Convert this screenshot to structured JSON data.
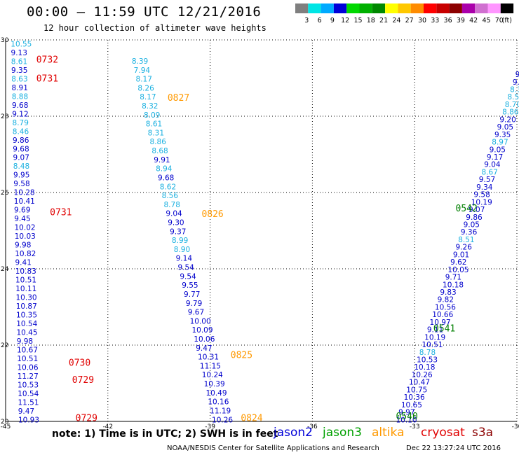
{
  "header": {
    "title": "00:00 – 11:59 UTC 12/21/2016",
    "subtitle": "12 hour collection of altimeter wave heights"
  },
  "colorbar": {
    "colors": [
      "#7f7f7f",
      "#00e5e5",
      "#00aaff",
      "#0000d8",
      "#00d800",
      "#00b000",
      "#008800",
      "#ffff00",
      "#ffc800",
      "#ff8c00",
      "#ff0000",
      "#c80000",
      "#8c0000",
      "#aa00aa",
      "#d070d0",
      "#ff96ff",
      "#000000"
    ],
    "labels": [
      "3",
      "6",
      "9",
      "12",
      "15",
      "18",
      "21",
      "24",
      "27",
      "30",
      "33",
      "36",
      "39",
      "42",
      "45",
      "70",
      "(ft)"
    ]
  },
  "notes": {
    "text": "note: 1) Time is in UTC; 2) SWH is in feet",
    "satellites": [
      {
        "name": "jason2",
        "color": "#0000d8"
      },
      {
        "name": "jason3",
        "color": "#00a000"
      },
      {
        "name": "altika",
        "color": "#ff9900"
      },
      {
        "name": "cryosat",
        "color": "#e00000"
      },
      {
        "name": "s3a",
        "color": "#8c0000"
      }
    ]
  },
  "footer": {
    "left": "NOAA/NESDIS Center for Satellite Applications and Research",
    "right": "Dec 22 13:27:24 UTC 2016"
  },
  "chart_data": {
    "type": "scatter",
    "xlim": [
      -45,
      -30
    ],
    "ylim": [
      20,
      30
    ],
    "x_ticks": [
      -45,
      -42,
      -39,
      -36,
      -33,
      -30
    ],
    "x_tick_labels": [
      "-45",
      "-42",
      "-39",
      "-36",
      "-33",
      "-30"
    ],
    "y_ticks": [
      20,
      22,
      24,
      26,
      28,
      30
    ],
    "y_tick_labels": [
      "20",
      "22",
      "24",
      "26",
      "28",
      "30"
    ],
    "grid": true,
    "palette": {
      "c": "#1ab0e0",
      "b": "#0000cc",
      "s": "#0060c8"
    },
    "tracks": [
      {
        "name": "A",
        "x": [
          -44.85,
          -44.63
        ],
        "y": [
          29.9,
          20.05
        ],
        "values": [
          [
            "10.55",
            "c"
          ],
          [
            "9.13",
            "b"
          ],
          [
            "8.61",
            "c"
          ],
          [
            "9.35",
            "b"
          ],
          [
            "8.63",
            "c"
          ],
          [
            "8.91",
            "b"
          ],
          [
            "8.88",
            "c"
          ],
          [
            "9.68",
            "b"
          ],
          [
            "9.12",
            "b"
          ],
          [
            "8.79",
            "c"
          ],
          [
            "8.46",
            "c"
          ],
          [
            "9.86",
            "b"
          ],
          [
            "9.68",
            "b"
          ],
          [
            "9.07",
            "b"
          ],
          [
            "8.48",
            "c"
          ],
          [
            "9.95",
            "b"
          ],
          [
            "9.58",
            "b"
          ],
          [
            "10.28",
            "b"
          ],
          [
            "10.41",
            "b"
          ],
          [
            "9.69",
            "b"
          ],
          [
            "9.45",
            "b"
          ],
          [
            "10.02",
            "b"
          ],
          [
            "10.03",
            "b"
          ],
          [
            "9.98",
            "b"
          ],
          [
            "10.82",
            "b"
          ],
          [
            "9.41",
            "b"
          ],
          [
            "10.83",
            "b"
          ],
          [
            "10.51",
            "b"
          ],
          [
            "10.11",
            "b"
          ],
          [
            "10.30",
            "b"
          ],
          [
            "10.87",
            "b"
          ],
          [
            "10.35",
            "b"
          ],
          [
            "10.54",
            "b"
          ],
          [
            "10.45",
            "b"
          ],
          [
            "9.98",
            "b"
          ],
          [
            "10.67",
            "b"
          ],
          [
            "10.51",
            "b"
          ],
          [
            "10.06",
            "b"
          ],
          [
            "11.27",
            "b"
          ],
          [
            "10.53",
            "b"
          ],
          [
            "10.54",
            "b"
          ],
          [
            "11.51",
            "b"
          ],
          [
            "9.47",
            "b"
          ],
          [
            "10.93",
            "b"
          ]
        ]
      },
      {
        "name": "B",
        "x": [
          -41.3,
          -38.95
        ],
        "y": [
          29.45,
          20.05
        ],
        "values": [
          [
            "8.39",
            "c"
          ],
          [
            "7.94",
            "c"
          ],
          [
            "8.17",
            "c"
          ],
          [
            "8.26",
            "c"
          ],
          [
            "8.17",
            "c"
          ],
          [
            "8.32",
            "c"
          ],
          [
            "8.09",
            "c"
          ],
          [
            "8.61",
            "c"
          ],
          [
            "8.31",
            "c"
          ],
          [
            "8.86",
            "c"
          ],
          [
            "8.68",
            "c"
          ],
          [
            "9.91",
            "b"
          ],
          [
            "8.94",
            "c"
          ],
          [
            "9.68",
            "b"
          ],
          [
            "8.62",
            "c"
          ],
          [
            "8.56",
            "c"
          ],
          [
            "8.78",
            "c"
          ],
          [
            "9.04",
            "b"
          ],
          [
            "9.30",
            "b"
          ],
          [
            "9.37",
            "b"
          ],
          [
            "8.99",
            "c"
          ],
          [
            "8.90",
            "c"
          ],
          [
            "9.14",
            "b"
          ],
          [
            "9.54",
            "b"
          ],
          [
            "9.54",
            "b"
          ],
          [
            "9.55",
            "b"
          ],
          [
            "9.77",
            "b"
          ],
          [
            "9.79",
            "b"
          ],
          [
            "9.67",
            "b"
          ],
          [
            "10.00",
            "b"
          ],
          [
            "10.09",
            "b"
          ],
          [
            "10.06",
            "b"
          ],
          [
            "9.47",
            "b"
          ],
          [
            "10.31",
            "b"
          ],
          [
            "11.15",
            "b"
          ],
          [
            "10.24",
            "b"
          ],
          [
            "10.39",
            "b"
          ],
          [
            "10.49",
            "b"
          ],
          [
            "10.16",
            "b"
          ],
          [
            "11.19",
            "b"
          ],
          [
            "10.26",
            "b"
          ]
        ]
      },
      {
        "name": "C",
        "x": [
          -30.05,
          -33.55
        ],
        "y": [
          29.1,
          20.05
        ],
        "values": [
          [
            "9",
            "b"
          ],
          [
            "9.",
            "b"
          ],
          [
            "8.3",
            "c"
          ],
          [
            "8.51",
            "c"
          ],
          [
            "8.70",
            "c"
          ],
          [
            "8.86",
            "c"
          ],
          [
            "9.20",
            "b"
          ],
          [
            "9.05",
            "b"
          ],
          [
            "9.35",
            "b"
          ],
          [
            "8.97",
            "c"
          ],
          [
            "9.05",
            "b"
          ],
          [
            "9.17",
            "b"
          ],
          [
            "9.04",
            "b"
          ],
          [
            "8.67",
            "c"
          ],
          [
            "9.57",
            "b"
          ],
          [
            "9.34",
            "b"
          ],
          [
            "9.58",
            "b"
          ],
          [
            "10.19",
            "b"
          ],
          [
            "9.07",
            "b"
          ],
          [
            "9.86",
            "b"
          ],
          [
            "9.05",
            "b"
          ],
          [
            "9.36",
            "b"
          ],
          [
            "8.51",
            "c"
          ],
          [
            "9.26",
            "b"
          ],
          [
            "9.01",
            "b"
          ],
          [
            "9.62",
            "b"
          ],
          [
            "10.05",
            "b"
          ],
          [
            "9.71",
            "b"
          ],
          [
            "10.18",
            "b"
          ],
          [
            "9.83",
            "b"
          ],
          [
            "9.82",
            "b"
          ],
          [
            "10.56",
            "b"
          ],
          [
            "10.66",
            "b"
          ],
          [
            "10.97",
            "b"
          ],
          [
            "9.11",
            "b"
          ],
          [
            "10.19",
            "b"
          ],
          [
            "10.51",
            "b"
          ],
          [
            "8.78",
            "c"
          ],
          [
            "10.53",
            "b"
          ],
          [
            "10.18",
            "b"
          ],
          [
            "10.26",
            "b"
          ],
          [
            "10.47",
            "b"
          ],
          [
            "10.75",
            "b"
          ],
          [
            "10.36",
            "b"
          ],
          [
            "10.65",
            "b"
          ],
          [
            "9.97",
            "b"
          ],
          [
            "10.10",
            "b"
          ]
        ]
      }
    ],
    "time_labels": [
      {
        "text": "0732",
        "color": "#e00000",
        "x": -44.1,
        "y": 29.5
      },
      {
        "text": "0731",
        "color": "#e00000",
        "x": -44.1,
        "y": 29.0
      },
      {
        "text": "0731",
        "color": "#e00000",
        "x": -43.7,
        "y": 25.5
      },
      {
        "text": "0730",
        "color": "#e00000",
        "x": -43.15,
        "y": 21.55
      },
      {
        "text": "0729",
        "color": "#e00000",
        "x": -43.05,
        "y": 21.1
      },
      {
        "text": "0729",
        "color": "#e00000",
        "x": -42.95,
        "y": 20.1
      },
      {
        "text": "0827",
        "color": "#ff9900",
        "x": -40.25,
        "y": 28.5
      },
      {
        "text": "0826",
        "color": "#ff9900",
        "x": -39.25,
        "y": 25.45
      },
      {
        "text": "0825",
        "color": "#ff9900",
        "x": -38.4,
        "y": 21.75
      },
      {
        "text": "0824",
        "color": "#ff9900",
        "x": -38.1,
        "y": 20.1
      },
      {
        "text": "0542",
        "color": "#007f00",
        "x": -31.8,
        "y": 25.6
      },
      {
        "text": "0541",
        "color": "#007f00",
        "x": -32.45,
        "y": 22.45
      },
      {
        "text": "0540",
        "color": "#007f00",
        "x": -33.55,
        "y": 20.15
      }
    ]
  }
}
